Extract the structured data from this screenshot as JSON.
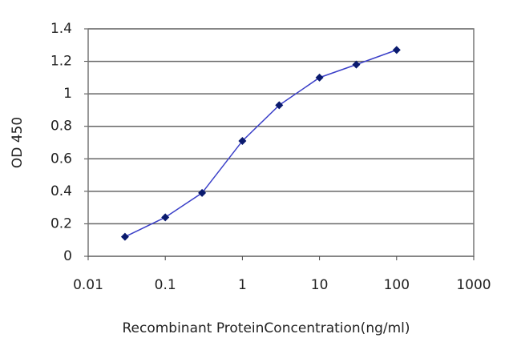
{
  "chart_data": {
    "type": "line",
    "x_label": "Recombinant ProteinConcentration(ng/ml)",
    "y_label": "OD 450",
    "log_x": true,
    "grid": true,
    "series": [
      {
        "name": "OD 450",
        "color": "#3a3fc8",
        "marker_color": "#0a1a6e",
        "x": [
          0.03,
          0.1,
          0.3,
          1,
          3,
          10,
          30,
          100
        ],
        "values": [
          0.12,
          0.24,
          0.39,
          0.71,
          0.93,
          1.1,
          1.18,
          1.27
        ]
      }
    ],
    "xlim": [
      0.01,
      1000
    ],
    "xticks": [
      0.01,
      0.1,
      1,
      10,
      100,
      1000
    ],
    "ylim": [
      0,
      1.4
    ],
    "yticks": [
      0,
      0.2,
      0.4,
      0.6,
      0.8,
      1,
      1.2,
      1.4
    ]
  }
}
